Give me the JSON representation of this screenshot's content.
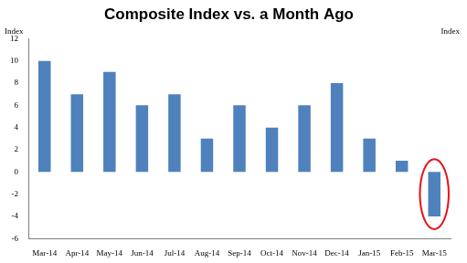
{
  "chart_data": {
    "type": "bar",
    "title": "Composite Index vs. a Month Ago",
    "ylabel": "Index",
    "y2label": "Index",
    "categories": [
      "Mar-14",
      "Apr-14",
      "May-14",
      "Jun-14",
      "Jul-14",
      "Aug-14",
      "Sep-14",
      "Oct-14",
      "Nov-14",
      "Dec-14",
      "Jan-15",
      "Feb-15",
      "Mar-15"
    ],
    "values": [
      10,
      7,
      9,
      6,
      7,
      3,
      6,
      4,
      6,
      8,
      3,
      1,
      -4
    ],
    "color": "#4f81bd",
    "ylim": [
      -6,
      12
    ],
    "yticks": [
      -6,
      -4,
      -2,
      0,
      2,
      4,
      6,
      8,
      10,
      12
    ],
    "grid": false
  }
}
